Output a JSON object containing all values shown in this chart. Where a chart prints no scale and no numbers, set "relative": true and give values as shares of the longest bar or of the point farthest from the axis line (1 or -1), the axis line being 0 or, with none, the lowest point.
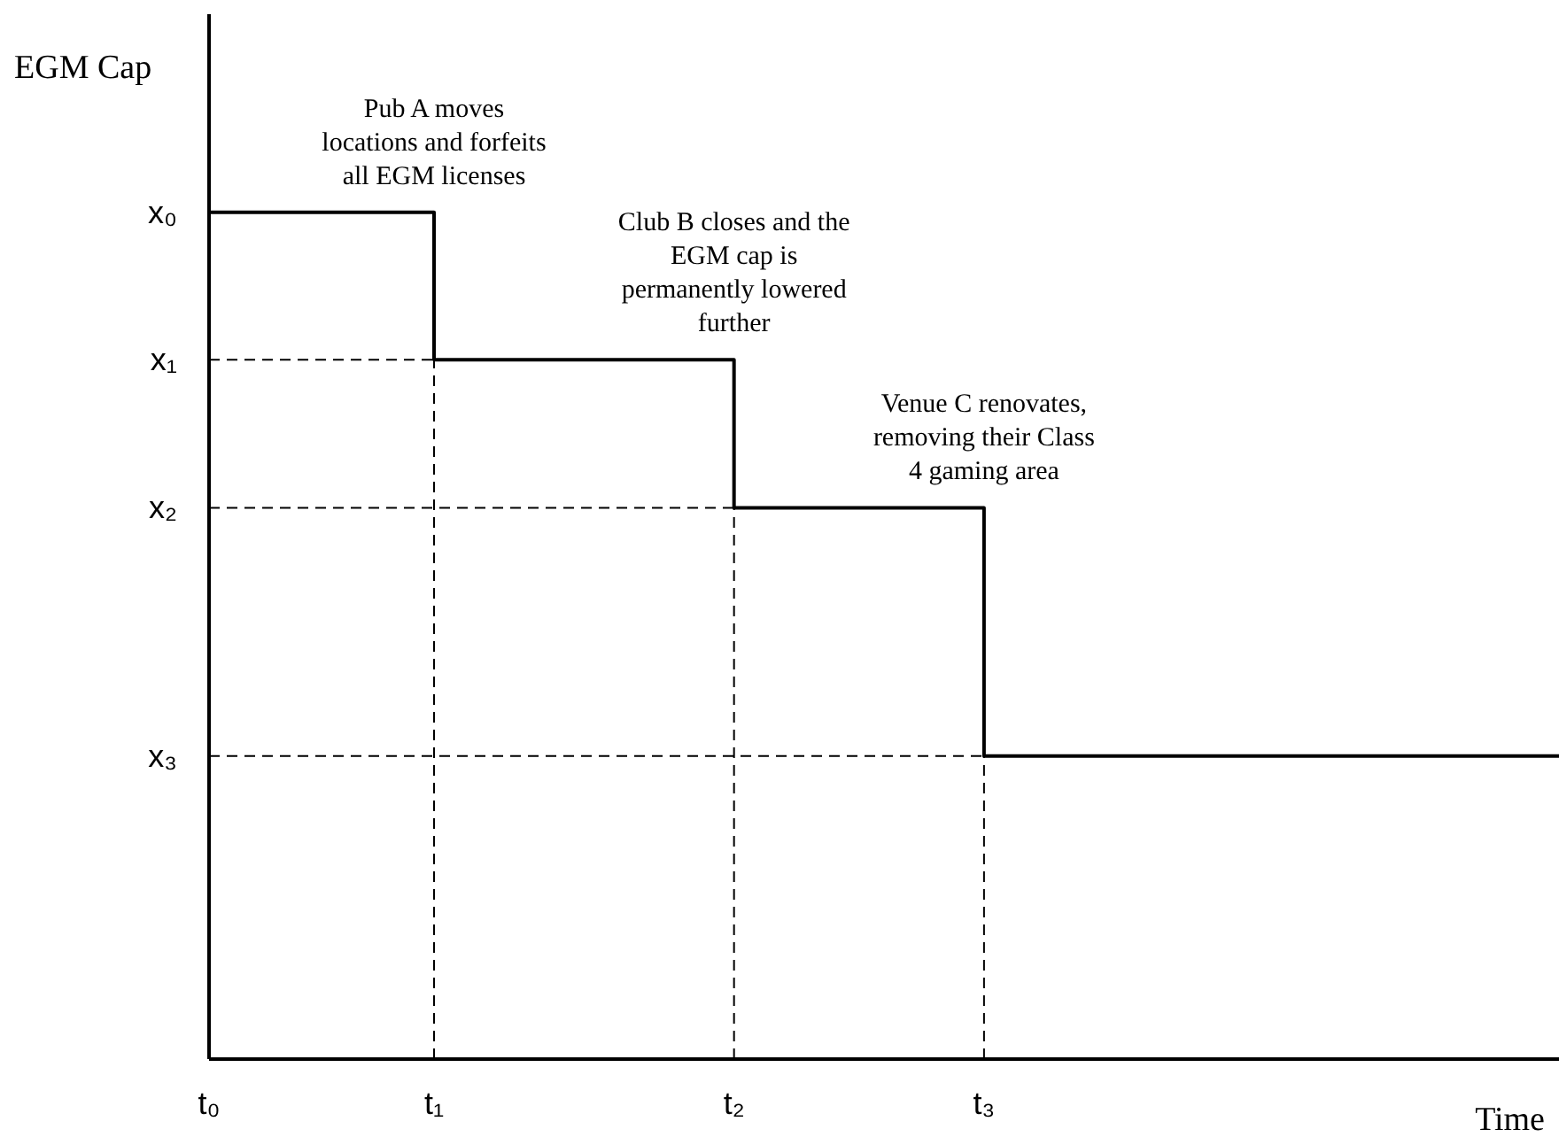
{
  "chart_data": {
    "type": "step",
    "relative": true,
    "xlabel": "Time",
    "ylabel": "EGM Cap",
    "categories": [
      "t₀",
      null,
      null,
      null,
      null,
      null,
      null,
      null,
      null,
      "t₁",
      null,
      null,
      null,
      null,
      null,
      null,
      null,
      null,
      null,
      null,
      null,
      "t₂",
      null,
      null,
      null,
      null,
      null,
      null,
      null,
      null,
      null,
      "t₃",
      null,
      null,
      null,
      null,
      null,
      null,
      null,
      null,
      null,
      null,
      null,
      null,
      null,
      null,
      null,
      null,
      null,
      null,
      null,
      null,
      null,
      null,
      null
    ],
    "series": [
      {
        "color": "#000000",
        "values": [
          1,
          1,
          1,
          1,
          1,
          1,
          1,
          1,
          1,
          0.826,
          0.826,
          0.826,
          0.826,
          0.826,
          0.826,
          0.826,
          0.826,
          0.826,
          0.826,
          0.826,
          0.826,
          0.651,
          0.651,
          0.651,
          0.651,
          0.651,
          0.651,
          0.651,
          0.651,
          0.651,
          0.651,
          0.358,
          0.358,
          0.358,
          0.358,
          0.358,
          0.358,
          0.358,
          0.358,
          0.358,
          0.358,
          0.358,
          0.358,
          0.358,
          0.358,
          0.358,
          0.358,
          0.358,
          0.358,
          0.358,
          0.358,
          0.358,
          0.358,
          0.358,
          0.358
        ]
      }
    ],
    "ref_lines": [
      {
        "axis": "y",
        "value": 0.826,
        "line_style": "dashed",
        "color": "#000000"
      },
      {
        "axis": "y",
        "value": 0.651,
        "line_style": "dashed",
        "color": "#000000"
      },
      {
        "axis": "y",
        "value": 0.358,
        "line_style": "dashed",
        "color": "#000000"
      },
      {
        "axis": "x",
        "value": "t₁",
        "line_style": "dashed",
        "color": "#000000"
      },
      {
        "axis": "x",
        "value": "t₂",
        "line_style": "dashed",
        "color": "#000000"
      },
      {
        "axis": "x",
        "value": "t₃",
        "line_style": "dashed",
        "color": "#000000"
      }
    ],
    "annotations": [
      "x₀",
      "x₁",
      "x₂",
      "x₃",
      {
        "text": "Pub A moves locations and forfeits all EGM licenses",
        "x": "t₁",
        "y": 1
      },
      {
        "text": "Club B closes and the EGM cap is permanently lowered further",
        "x": "t₂",
        "y": 0.826
      },
      {
        "text": "Venue C renovates, removing their Class 4 gaming area",
        "x": "t₃",
        "y": 0.651
      }
    ],
    "grid": false,
    "legend": false,
    "marker": "none",
    "line_style": "solid"
  }
}
